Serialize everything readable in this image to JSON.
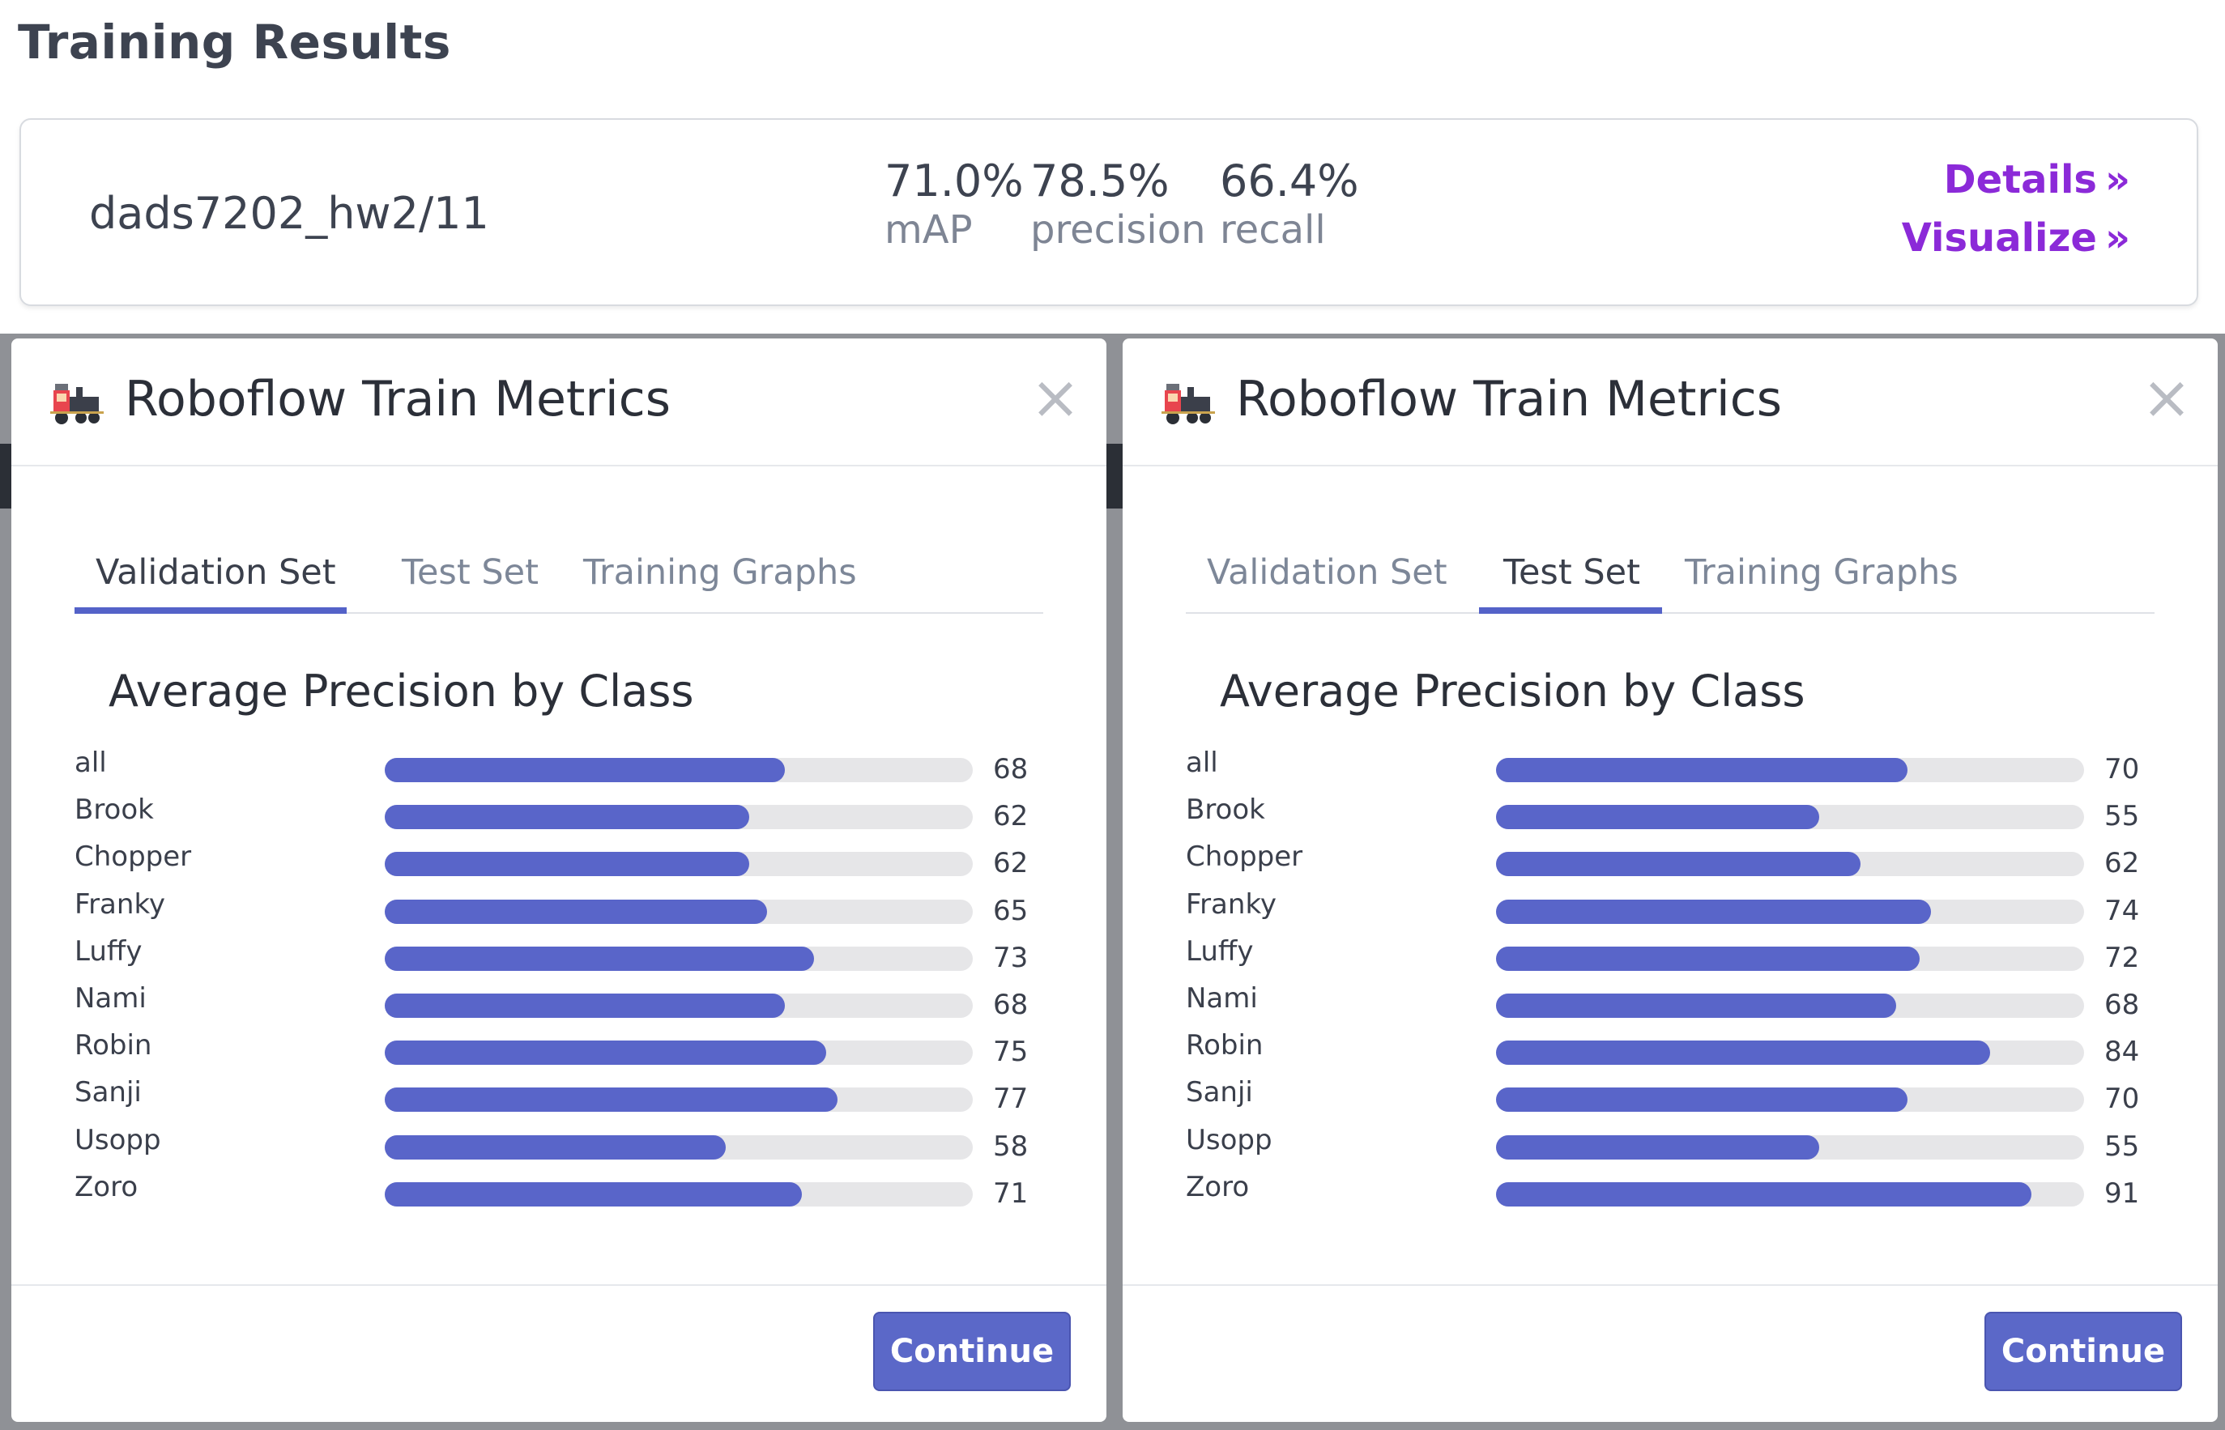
{
  "page": {
    "title": "Training Results"
  },
  "results": {
    "model_name": "dads7202_hw2/11",
    "metrics": [
      {
        "value": "71.0%",
        "label": "mAP"
      },
      {
        "value": "78.5%",
        "label": "precision"
      },
      {
        "value": "66.4%",
        "label": "recall"
      }
    ],
    "details_link": "Details",
    "visualize_link": "Visualize",
    "link_chevron": "»"
  },
  "modals": [
    {
      "title": "Roboflow Train Metrics",
      "close": "×",
      "tabs": [
        "Validation Set",
        "Test Set",
        "Training Graphs"
      ],
      "active_tab": 0,
      "chart_title": "Average Precision by Class",
      "continue_label": "Continue"
    },
    {
      "title": "Roboflow Train Metrics",
      "close": "×",
      "tabs": [
        "Validation Set",
        "Test Set",
        "Training Graphs"
      ],
      "active_tab": 1,
      "chart_title": "Average Precision by Class",
      "continue_label": "Continue"
    }
  ],
  "chart_data": [
    {
      "type": "bar",
      "orientation": "horizontal",
      "title": "Average Precision by Class",
      "categories": [
        "all",
        "Brook",
        "Chopper",
        "Franky",
        "Luffy",
        "Nami",
        "Robin",
        "Sanji",
        "Usopp",
        "Zoro"
      ],
      "values": [
        68,
        62,
        62,
        65,
        73,
        68,
        75,
        77,
        58,
        71
      ],
      "xlim": [
        0,
        100
      ],
      "bar_color": "#5965c9",
      "track_color": "#e6e6e8"
    },
    {
      "type": "bar",
      "orientation": "horizontal",
      "title": "Average Precision by Class",
      "categories": [
        "all",
        "Brook",
        "Chopper",
        "Franky",
        "Luffy",
        "Nami",
        "Robin",
        "Sanji",
        "Usopp",
        "Zoro"
      ],
      "values": [
        70,
        55,
        62,
        74,
        72,
        68,
        84,
        70,
        55,
        91
      ],
      "xlim": [
        0,
        100
      ],
      "bar_color": "#5965c9",
      "track_color": "#e6e6e8"
    }
  ]
}
